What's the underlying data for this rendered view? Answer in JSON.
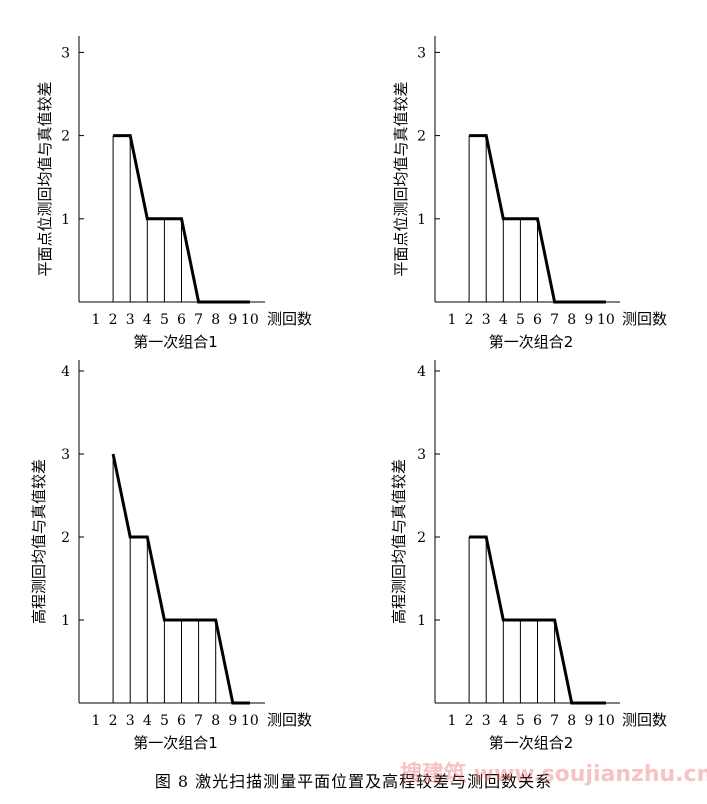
{
  "figure": {
    "caption": "图 8   激光扫描测量平面位置及高程较差与测回数关系",
    "watermark": "搜建筑 www.soujianzhu.cn"
  },
  "chart_data": [
    {
      "type": "area",
      "ylabel": "平面点位测回均值与真值较差",
      "xlabel": "测回数",
      "subtitle": "第一次组合1",
      "categories": [
        1,
        2,
        3,
        4,
        5,
        6,
        7,
        8,
        9,
        10
      ],
      "yticks": [
        1,
        2,
        3
      ],
      "ylim": [
        0,
        3.2
      ],
      "x": [
        2,
        3,
        4,
        5,
        6,
        7,
        8,
        9,
        10
      ],
      "values": [
        2,
        2,
        1,
        1,
        1,
        0,
        0,
        0,
        0
      ]
    },
    {
      "type": "area",
      "ylabel": "平面点位测回均值与真值较差",
      "xlabel": "测回数",
      "subtitle": "第一次组合2",
      "categories": [
        1,
        2,
        3,
        4,
        5,
        6,
        7,
        8,
        9,
        10
      ],
      "yticks": [
        1,
        2,
        3
      ],
      "ylim": [
        0,
        3.2
      ],
      "x": [
        2,
        3,
        4,
        5,
        6,
        7,
        8,
        9,
        10
      ],
      "values": [
        2,
        2,
        1,
        1,
        1,
        0,
        0,
        0,
        0
      ]
    },
    {
      "type": "area",
      "ylabel": "高程测回均值与真值较差",
      "xlabel": "测回数",
      "subtitle": "第一次组合1",
      "categories": [
        1,
        2,
        3,
        4,
        5,
        6,
        7,
        8,
        9,
        10
      ],
      "yticks": [
        1,
        2,
        3,
        4
      ],
      "ylim": [
        0,
        4.1
      ],
      "x": [
        2,
        3,
        4,
        5,
        6,
        7,
        8,
        9,
        10
      ],
      "values": [
        3,
        2,
        2,
        1,
        1,
        1,
        1,
        0,
        0
      ]
    },
    {
      "type": "area",
      "ylabel": "高程测回均值与真值较差",
      "xlabel": "测回数",
      "subtitle": "第一次组合2",
      "categories": [
        1,
        2,
        3,
        4,
        5,
        6,
        7,
        8,
        9,
        10
      ],
      "yticks": [
        1,
        2,
        3,
        4
      ],
      "ylim": [
        0,
        4.1
      ],
      "x": [
        2,
        3,
        4,
        5,
        6,
        7,
        8,
        9,
        10
      ],
      "values": [
        2,
        2,
        1,
        1,
        1,
        1,
        0,
        0,
        0
      ]
    }
  ]
}
